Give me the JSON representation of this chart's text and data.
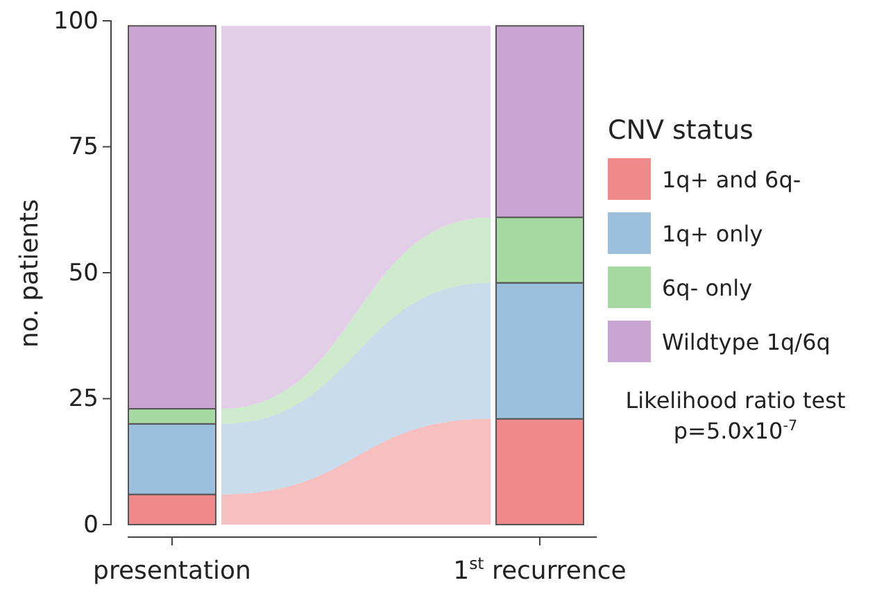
{
  "chart_data": {
    "type": "bar",
    "stacked": true,
    "ylabel": "no. patients",
    "categories": [
      "presentation",
      "1$^{st}$ recurrence"
    ],
    "series": [
      {
        "name": "1q+ and 6q-",
        "color": "#f08a8a",
        "values": [
          6,
          21
        ]
      },
      {
        "name": "1q+ only",
        "color": "#9bbfdc",
        "values": [
          14,
          27
        ]
      },
      {
        "name": "6q- only",
        "color": "#a6d8a2",
        "values": [
          3,
          13
        ]
      },
      {
        "name": "Wildtype 1q/6q",
        "color": "#cba5d1",
        "values": [
          76,
          38
        ]
      }
    ],
    "ylim": [
      0,
      100
    ],
    "yticks": [
      0,
      25,
      50,
      75,
      100
    ],
    "grid": false,
    "legend": "right",
    "legend_title": "CNV status",
    "annotations": [
      "Likelihood ratio test",
      "p=5.0x10$^{-7}$"
    ]
  }
}
